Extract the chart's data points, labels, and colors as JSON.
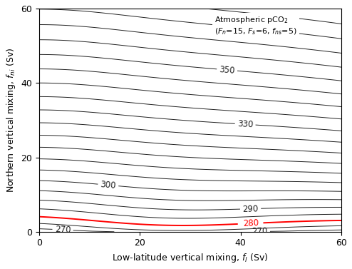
{
  "xlim": [
    0,
    60
  ],
  "ylim": [
    0,
    60
  ],
  "xlabel": "Low-latitude vertical mixing, $f_l$ (Sv)",
  "ylabel": "Northern vertical mixing, $f_{ni}$ (Sv)",
  "contour_levels": [
    265,
    270,
    275,
    280,
    285,
    290,
    295,
    300,
    305,
    310,
    315,
    320,
    325,
    330,
    335,
    340,
    345,
    350,
    355,
    360,
    365,
    370
  ],
  "labeled_levels": [
    270,
    280,
    290,
    300,
    330,
    350
  ],
  "red_level": 280,
  "xticks": [
    0,
    20,
    40,
    60
  ],
  "yticks": [
    0,
    20,
    40,
    60
  ],
  "annot_text_line1": "Atmospheric pCO$_2$",
  "annot_text_line2": "($F_n$=15, $F_s$=6, $f_{ns}$=5)"
}
